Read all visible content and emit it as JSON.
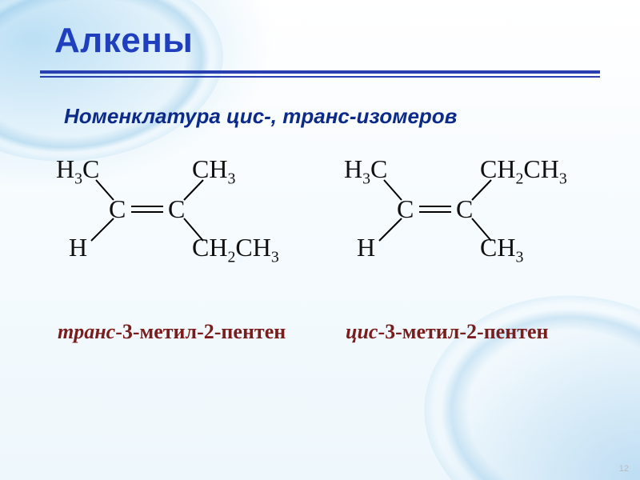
{
  "colors": {
    "title": "#1f3fbf",
    "underline": "#2a3fb0",
    "subtitle": "#0c2a8a",
    "caption": "#7a1d1d",
    "formula": "#111111",
    "page_number": "#b9b9c2"
  },
  "fontsizes": {
    "title": 44,
    "subtitle": 26,
    "formula": 32,
    "caption": 26,
    "page_number": 11
  },
  "title": "Алкены",
  "subtitle": "Номенклатура цис-, транс-изомеров",
  "molecules": {
    "left": {
      "top_left": "H₃C",
      "top_right": "CH₃",
      "center_left": "C",
      "center_right": "C",
      "bottom_left": "H",
      "bottom_right": "CH₂CH₃",
      "caption_prefix": "транс",
      "caption_rest": "-3-метил-2-пентен"
    },
    "right": {
      "top_left": "H₃C",
      "top_right": "CH₂CH₃",
      "center_left": "C",
      "center_right": "C",
      "bottom_left": "H",
      "bottom_right": "CH₃",
      "caption_prefix": "цис",
      "caption_rest": "-3-метил-2-пентен"
    }
  },
  "page_number": "12"
}
